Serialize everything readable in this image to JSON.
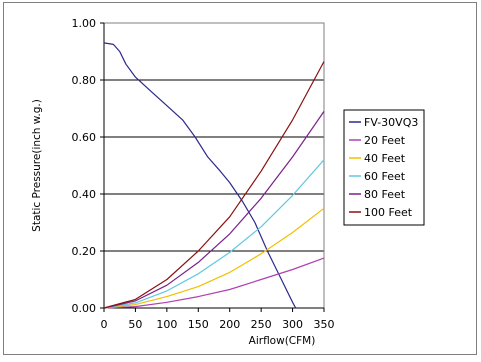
{
  "chart_data": {
    "type": "line",
    "title": "",
    "xlabel": "Airflow(CFM)",
    "ylabel": "Static Pressure(inch w.g.)",
    "xlim": [
      0,
      350
    ],
    "ylim": [
      0,
      1.0
    ],
    "x_ticks": [
      "0",
      "50",
      "100",
      "150",
      "200",
      "250",
      "300",
      "350"
    ],
    "y_ticks": [
      "0.00",
      "0.20",
      "0.40",
      "0.60",
      "0.80",
      "1.00"
    ],
    "grid": "horizontal",
    "legend_position": "right",
    "series": [
      {
        "name": "FV-30VQ3",
        "color": "#2b2b8c",
        "points": [
          [
            0,
            0.93
          ],
          [
            15,
            0.925
          ],
          [
            25,
            0.9
          ],
          [
            35,
            0.855
          ],
          [
            50,
            0.81
          ],
          [
            75,
            0.76
          ],
          [
            100,
            0.71
          ],
          [
            125,
            0.66
          ],
          [
            145,
            0.6
          ],
          [
            165,
            0.53
          ],
          [
            185,
            0.48
          ],
          [
            200,
            0.44
          ],
          [
            220,
            0.375
          ],
          [
            240,
            0.3
          ],
          [
            260,
            0.2
          ],
          [
            280,
            0.11
          ],
          [
            300,
            0.02
          ],
          [
            305,
            0.0
          ]
        ]
      },
      {
        "name": "20 Feet",
        "color": "#b040b0",
        "points": [
          [
            0,
            0.0
          ],
          [
            50,
            0.005
          ],
          [
            100,
            0.02
          ],
          [
            150,
            0.04
          ],
          [
            200,
            0.065
          ],
          [
            250,
            0.1
          ],
          [
            300,
            0.135
          ],
          [
            350,
            0.175
          ]
        ]
      },
      {
        "name": "40 Feet",
        "color": "#f0c000",
        "points": [
          [
            0,
            0.0
          ],
          [
            50,
            0.012
          ],
          [
            100,
            0.04
          ],
          [
            150,
            0.075
          ],
          [
            200,
            0.125
          ],
          [
            250,
            0.19
          ],
          [
            300,
            0.265
          ],
          [
            350,
            0.35
          ]
        ]
      },
      {
        "name": "60 Feet",
        "color": "#60c8e0",
        "points": [
          [
            0,
            0.0
          ],
          [
            50,
            0.018
          ],
          [
            100,
            0.06
          ],
          [
            150,
            0.12
          ],
          [
            200,
            0.195
          ],
          [
            250,
            0.285
          ],
          [
            300,
            0.395
          ],
          [
            350,
            0.52
          ]
        ]
      },
      {
        "name": "80 Feet",
        "color": "#7a1f8a",
        "points": [
          [
            0,
            0.0
          ],
          [
            50,
            0.025
          ],
          [
            100,
            0.08
          ],
          [
            150,
            0.16
          ],
          [
            200,
            0.26
          ],
          [
            250,
            0.385
          ],
          [
            300,
            0.53
          ],
          [
            350,
            0.69
          ]
        ]
      },
      {
        "name": "100 Feet",
        "color": "#8b1010",
        "points": [
          [
            0,
            0.0
          ],
          [
            50,
            0.03
          ],
          [
            100,
            0.1
          ],
          [
            150,
            0.2
          ],
          [
            200,
            0.32
          ],
          [
            250,
            0.48
          ],
          [
            300,
            0.66
          ],
          [
            350,
            0.865
          ]
        ]
      }
    ]
  }
}
